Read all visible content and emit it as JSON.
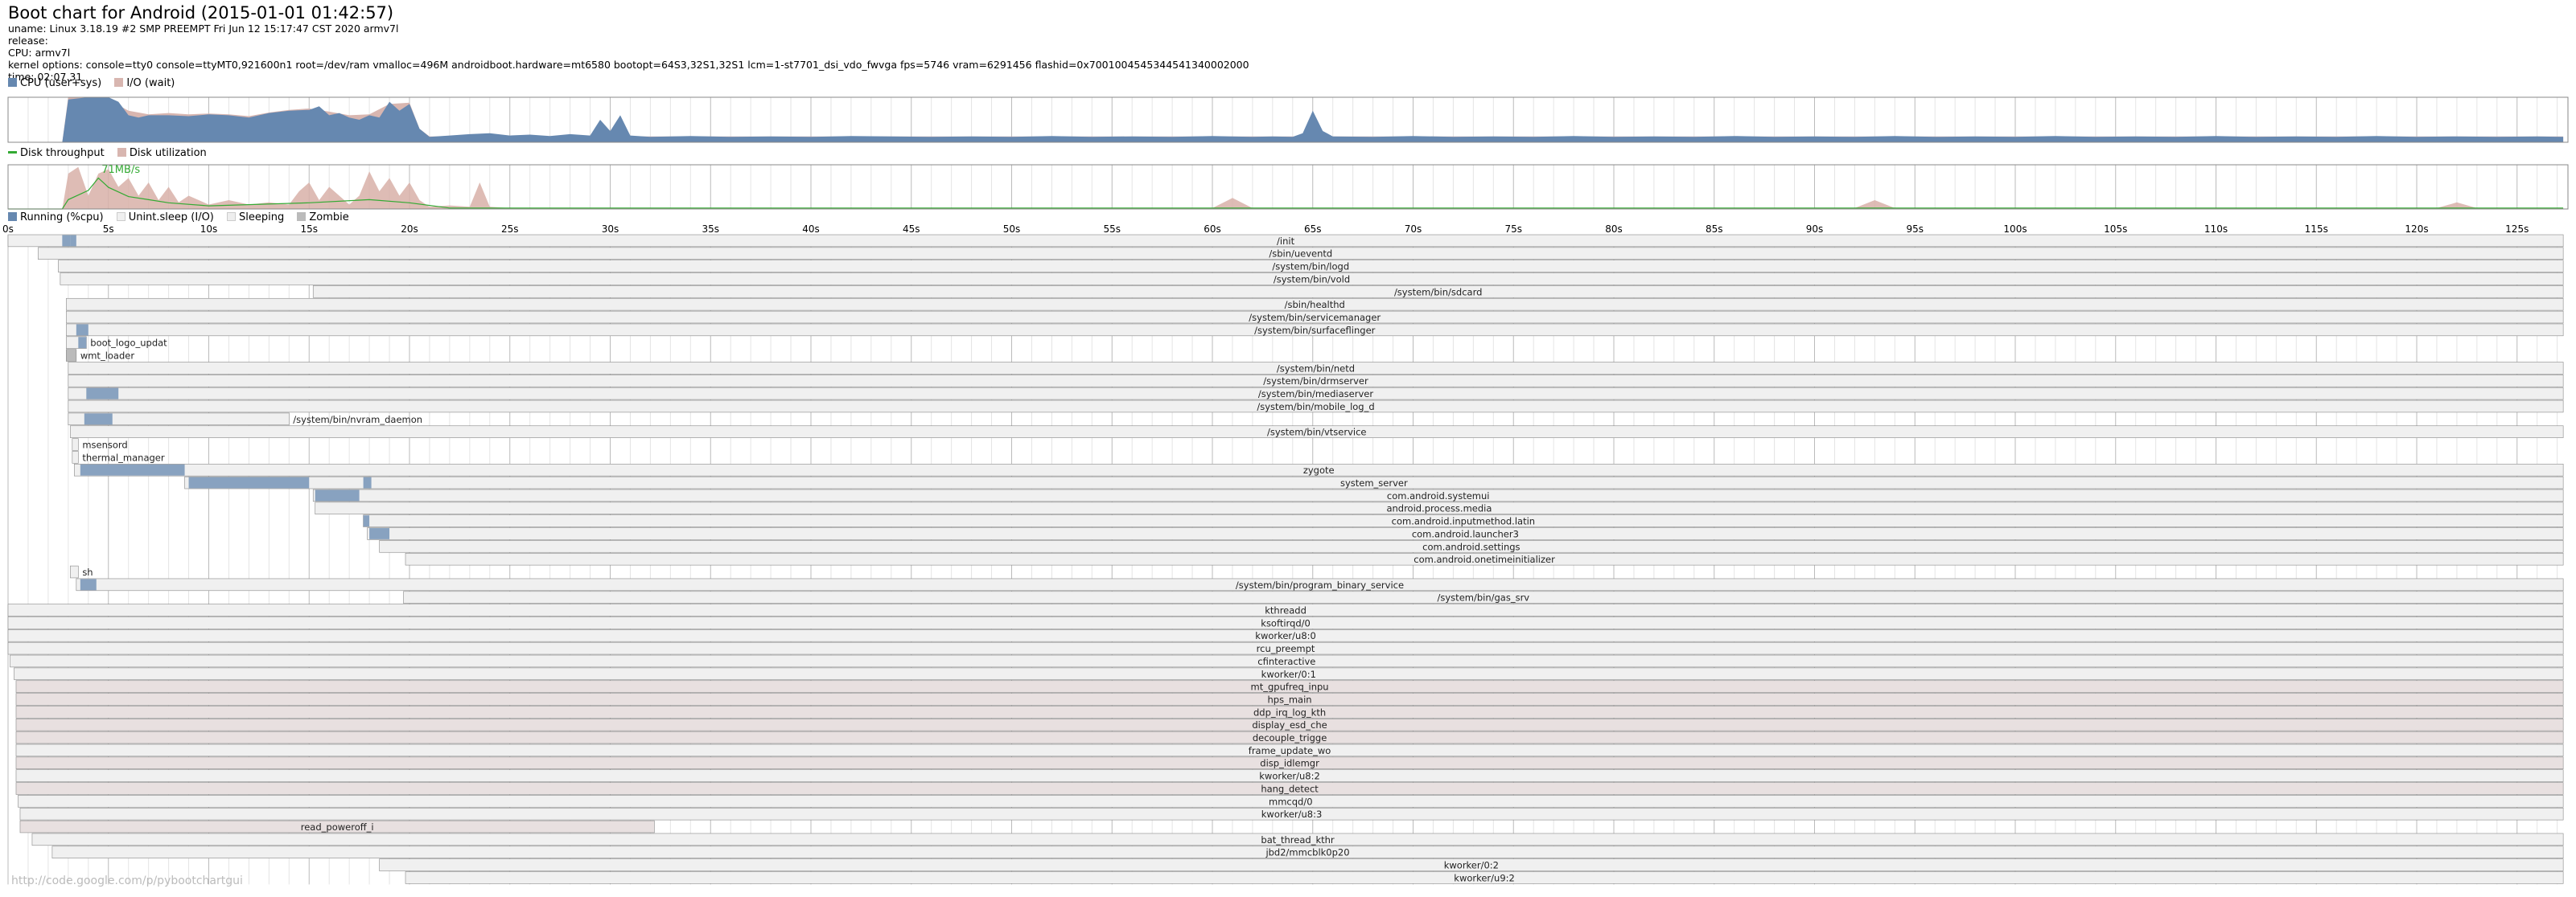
{
  "header": {
    "title": "Boot chart for Android (2015-01-01 01:42:57)",
    "lines": [
      "uname: Linux 3.18.19 #2 SMP PREEMPT Fri Jun 12 15:17:47 CST 2020 armv7l",
      "release:",
      "CPU: armv7l",
      "kernel options: console=tty0 console=ttyMT0,921600n1 root=/dev/ram vmalloc=496M androidboot.hardware=mt6580 bootopt=64S3,32S1,32S1 lcm=1-st7701_dsi_vdo_fwvga fps=5746 vram=6291456 flashid=0x7001004545344541340002000",
      "time: 02:07.31"
    ]
  },
  "legends": {
    "cpu": [
      {
        "label": "CPU (user+sys)",
        "color": "#6688b0"
      },
      {
        "label": "I/O (wait)",
        "color": "#d8b6b0"
      }
    ],
    "disk": [
      {
        "label": "Disk throughput",
        "color": "#33aa33"
      },
      {
        "label": "Disk utilization",
        "color": "#d8b6b0"
      }
    ],
    "process": [
      {
        "label": "Running (%cpu)",
        "color": "#6688b0"
      },
      {
        "label": "Unint.sleep (I/O)",
        "color": "#f0f0f0"
      },
      {
        "label": "Sleeping",
        "color": "#eeeeee"
      },
      {
        "label": "Zombie",
        "color": "#bbbbbb"
      }
    ]
  },
  "footer": "http://code.google.com/p/pybootchartgui",
  "colors": {
    "cpu": "#6688b0",
    "io": "#d8b6b0",
    "disk_util": "#d8b0a8",
    "throughput": "#33aa33",
    "grid": "#cccccc",
    "proc_fill": "#f0f0f0",
    "proc_border": "#888888",
    "proc_kernel": "#e8e0e0",
    "zombie": "#bbbbbb"
  },
  "chart_data": [
    {
      "type": "area",
      "name": "cpu-utilization",
      "x_unit": "s",
      "xlim": [
        0,
        127.31
      ],
      "series": [
        {
          "name": "CPU (user+sys)",
          "x": [
            0,
            2.7,
            3,
            4,
            5,
            5.5,
            6,
            6.5,
            7,
            8,
            9,
            10,
            11,
            12,
            13,
            14,
            15,
            15.5,
            16,
            16.5,
            17,
            17.5,
            18,
            18.5,
            19,
            19.5,
            20,
            20.5,
            21,
            22,
            23,
            24,
            25,
            26,
            27,
            28,
            29,
            29.5,
            30,
            30.5,
            31,
            32,
            34,
            36,
            38,
            40,
            42,
            44,
            46,
            48,
            50,
            52,
            54,
            56,
            58,
            60,
            62,
            63,
            64,
            64.5,
            65,
            65.5,
            66,
            68,
            70,
            72,
            74,
            76,
            78,
            80,
            82,
            84,
            86,
            88,
            90,
            92,
            94,
            96,
            98,
            100,
            102,
            104,
            106,
            108,
            110,
            112,
            114,
            116,
            118,
            120,
            122,
            124,
            126,
            127.3
          ],
          "y": [
            0,
            0,
            0.95,
            1,
            1,
            0.9,
            0.6,
            0.55,
            0.6,
            0.6,
            0.58,
            0.62,
            0.6,
            0.55,
            0.65,
            0.7,
            0.72,
            0.8,
            0.6,
            0.65,
            0.55,
            0.5,
            0.6,
            0.55,
            0.9,
            0.7,
            0.85,
            0.3,
            0.12,
            0.15,
            0.18,
            0.2,
            0.15,
            0.17,
            0.14,
            0.18,
            0.15,
            0.5,
            0.25,
            0.6,
            0.15,
            0.12,
            0.14,
            0.12,
            0.13,
            0.12,
            0.14,
            0.13,
            0.12,
            0.13,
            0.12,
            0.14,
            0.12,
            0.13,
            0.12,
            0.14,
            0.12,
            0.13,
            0.12,
            0.2,
            0.7,
            0.25,
            0.13,
            0.12,
            0.14,
            0.12,
            0.13,
            0.12,
            0.14,
            0.12,
            0.13,
            0.12,
            0.14,
            0.12,
            0.13,
            0.12,
            0.14,
            0.12,
            0.13,
            0.12,
            0.14,
            0.12,
            0.13,
            0.12,
            0.14,
            0.12,
            0.13,
            0.12,
            0.14,
            0.12,
            0.13,
            0.12,
            0.13,
            0.12
          ]
        },
        {
          "name": "I/O (wait)",
          "x": [
            0,
            2.7,
            3,
            4,
            5,
            6,
            7,
            8,
            9,
            10,
            11,
            12,
            13,
            14,
            15,
            16,
            17,
            18,
            19,
            20,
            20.5,
            21,
            127.3
          ],
          "y": [
            0,
            0,
            1,
            1,
            0.95,
            0.7,
            0.62,
            0.65,
            0.62,
            0.64,
            0.62,
            0.58,
            0.66,
            0.72,
            0.75,
            0.68,
            0.6,
            0.62,
            0.85,
            0.88,
            0.3,
            0.13,
            0.13
          ]
        }
      ]
    },
    {
      "type": "area",
      "name": "disk-utilization",
      "x_unit": "s",
      "xlim": [
        0,
        127.31
      ],
      "annotations": [
        "71MB/s"
      ],
      "series": [
        {
          "name": "Disk utilization",
          "x": [
            0,
            2.7,
            3,
            3.5,
            4,
            4.5,
            5,
            5.5,
            6,
            6.5,
            7,
            7.5,
            8,
            8.5,
            9,
            10,
            11,
            12,
            13,
            14,
            14.5,
            15,
            15.5,
            16,
            16.5,
            17,
            17.5,
            18,
            18.5,
            19,
            19.5,
            20,
            20.5,
            21,
            22,
            23,
            23.5,
            24,
            25,
            60,
            61,
            62,
            92,
            93,
            94,
            121,
            122,
            123,
            127.3
          ],
          "y": [
            0,
            0,
            0.8,
            0.95,
            0.3,
            0.8,
            0.9,
            0.5,
            0.7,
            0.3,
            0.6,
            0.2,
            0.5,
            0.15,
            0.3,
            0.1,
            0.2,
            0.1,
            0.15,
            0.1,
            0.4,
            0.6,
            0.2,
            0.5,
            0.3,
            0.1,
            0.3,
            0.85,
            0.4,
            0.7,
            0.3,
            0.6,
            0.2,
            0.05,
            0.08,
            0.05,
            0.6,
            0.05,
            0.02,
            0.02,
            0.25,
            0.02,
            0.02,
            0.2,
            0.02,
            0.02,
            0.15,
            0.02,
            0.02
          ]
        },
        {
          "name": "Disk throughput",
          "x": [
            0,
            2.7,
            3,
            4,
            4.5,
            5,
            6,
            7,
            8,
            10,
            15,
            18,
            20,
            22,
            127.3
          ],
          "y": [
            0,
            0,
            0.3,
            0.6,
            1,
            0.7,
            0.4,
            0.3,
            0.2,
            0.1,
            0.2,
            0.3,
            0.2,
            0.03,
            0.03
          ]
        }
      ]
    },
    {
      "type": "bar",
      "name": "process-timeline",
      "x_unit": "s",
      "ticks": [
        "0s",
        "5s",
        "10s",
        "15s",
        "20s",
        "25s",
        "30s",
        "35s",
        "40s",
        "45s",
        "50s",
        "55s",
        "60s",
        "65s",
        "70s",
        "75s",
        "80s",
        "85s",
        "90s",
        "95s",
        "100s",
        "105s",
        "110s",
        "115s",
        "120s",
        "125s"
      ],
      "processes": [
        {
          "name": "/init",
          "start": 0,
          "end": 127.3,
          "runs": [
            [
              2.7,
              3.1
            ],
            [
              3.1,
              3.4
            ]
          ]
        },
        {
          "name": "/sbin/ueventd",
          "start": 1.5,
          "end": 127.3
        },
        {
          "name": "/system/bin/logd",
          "start": 2.5,
          "end": 127.3
        },
        {
          "name": "/system/bin/vold",
          "start": 2.6,
          "end": 127.3
        },
        {
          "name": "/system/bin/sdcard",
          "start": 15.2,
          "end": 127.3
        },
        {
          "name": "/sbin/healthd",
          "start": 2.9,
          "end": 127.3
        },
        {
          "name": "/system/bin/servicemanager",
          "start": 2.9,
          "end": 127.3
        },
        {
          "name": "/system/bin/surfaceflinger",
          "start": 2.9,
          "end": 127.3,
          "runs": [
            [
              3.4,
              4.0
            ]
          ]
        },
        {
          "name": "boot_logo_updat",
          "start": 2.9,
          "end": 3.9,
          "runs": [
            [
              3.5,
              3.9
            ]
          ]
        },
        {
          "name": "wmt_loader",
          "start": 2.9,
          "end": 3.4,
          "zombie": true
        },
        {
          "name": "/system/bin/netd",
          "start": 3.0,
          "end": 127.3
        },
        {
          "name": "/system/bin/drmserver",
          "start": 3.0,
          "end": 127.3
        },
        {
          "name": "/system/bin/mediaserver",
          "start": 3.0,
          "end": 127.3,
          "runs": [
            [
              3.9,
              5.5
            ]
          ]
        },
        {
          "name": "/system/bin/mobile_log_d",
          "start": 3.0,
          "end": 127.3
        },
        {
          "name": "/system/bin/nvram_daemon",
          "start": 3.0,
          "end": 14.0,
          "runs": [
            [
              3.8,
              5.2
            ]
          ]
        },
        {
          "name": "/system/bin/vtservice",
          "start": 3.1,
          "end": 127.3
        },
        {
          "name": "msensord",
          "start": 3.2,
          "end": 3.5
        },
        {
          "name": "thermal_manager",
          "start": 3.2,
          "end": 3.5
        },
        {
          "name": "zygote",
          "start": 3.3,
          "end": 127.3,
          "runs": [
            [
              3.6,
              8.8
            ]
          ]
        },
        {
          "name": "system_server",
          "start": 8.8,
          "end": 127.3,
          "runs": [
            [
              9.0,
              15.0
            ],
            [
              17.7,
              18.1
            ]
          ]
        },
        {
          "name": "com.android.systemui",
          "start": 15.2,
          "end": 127.3,
          "runs": [
            [
              15.3,
              17.5
            ]
          ]
        },
        {
          "name": "android.process.media",
          "start": 15.3,
          "end": 127.3
        },
        {
          "name": "com.android.inputmethod.latin",
          "start": 17.7,
          "end": 127.3,
          "runs": [
            [
              17.7,
              18.0
            ]
          ]
        },
        {
          "name": "com.android.launcher3",
          "start": 17.9,
          "end": 127.3,
          "runs": [
            [
              18.0,
              19.0
            ]
          ]
        },
        {
          "name": "com.android.settings",
          "start": 18.5,
          "end": 127.3
        },
        {
          "name": "com.android.onetimeinitializer",
          "start": 19.8,
          "end": 127.3
        },
        {
          "name": "sh",
          "start": 3.1,
          "end": 3.5
        },
        {
          "name": "/system/bin/program_binary_service",
          "start": 3.4,
          "end": 127.3,
          "runs": [
            [
              3.6,
              4.4
            ]
          ]
        },
        {
          "name": "/system/bin/gas_srv",
          "start": 19.7,
          "end": 127.3
        },
        {
          "name": "kthreadd",
          "start": 0,
          "end": 127.3
        },
        {
          "name": "ksoftirqd/0",
          "start": 0,
          "end": 127.3
        },
        {
          "name": "kworker/u8:0",
          "start": 0,
          "end": 127.3
        },
        {
          "name": "rcu_preempt",
          "start": 0,
          "end": 127.3
        },
        {
          "name": "cfinteractive",
          "start": 0.1,
          "end": 127.3
        },
        {
          "name": "kworker/0:1",
          "start": 0.3,
          "end": 127.3
        },
        {
          "name": "mt_gpufreq_inpu",
          "start": 0.4,
          "end": 127.3,
          "io": true
        },
        {
          "name": "hps_main",
          "start": 0.4,
          "end": 127.3,
          "io": true
        },
        {
          "name": "ddp_irq_log_kth",
          "start": 0.4,
          "end": 127.3,
          "io": true
        },
        {
          "name": "display_esd_che",
          "start": 0.4,
          "end": 127.3,
          "io": true
        },
        {
          "name": "decouple_trigge",
          "start": 0.4,
          "end": 127.3,
          "io": true
        },
        {
          "name": "frame_update_wo",
          "start": 0.4,
          "end": 127.3
        },
        {
          "name": "disp_idlemgr",
          "start": 0.4,
          "end": 127.3,
          "io": true
        },
        {
          "name": "kworker/u8:2",
          "start": 0.4,
          "end": 127.3
        },
        {
          "name": "hang_detect",
          "start": 0.4,
          "end": 127.3,
          "io": true
        },
        {
          "name": "mmcqd/0",
          "start": 0.5,
          "end": 127.3
        },
        {
          "name": "kworker/u8:3",
          "start": 0.6,
          "end": 127.3
        },
        {
          "name": "read_poweroff_i",
          "start": 0.6,
          "end": 32.2,
          "io": true
        },
        {
          "name": "bat_thread_kthr",
          "start": 1.2,
          "end": 127.3
        },
        {
          "name": "jbd2/mmcblk0p20",
          "start": 2.2,
          "end": 127.3
        },
        {
          "name": "kworker/0:2",
          "start": 18.5,
          "end": 127.3
        },
        {
          "name": "kworker/u9:2",
          "start": 19.8,
          "end": 127.3
        }
      ]
    }
  ]
}
